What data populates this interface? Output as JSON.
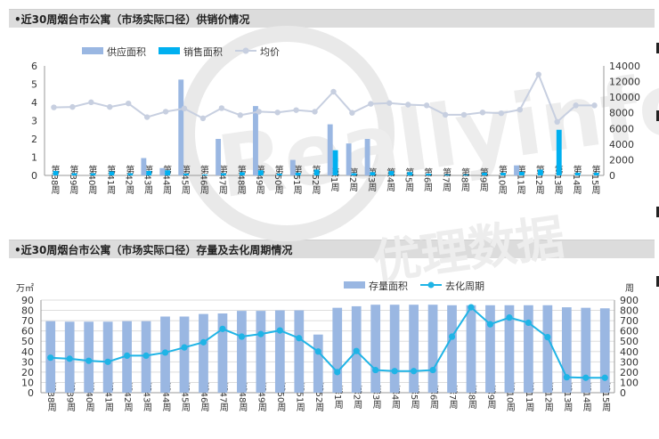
{
  "colors": {
    "supply": "#9ab7e2",
    "sales": "#00b0f0",
    "avg_line": "#c7cfe0",
    "stock": "#9ab7e2",
    "cycle": "#1fb4e6",
    "axis_text": "#333333",
    "grid": "#dddddd",
    "watermark": "#e2e2e2"
  },
  "watermark": {
    "main": "Reallyinfo",
    "sub": "优理数据"
  },
  "chart_data": [
    {
      "type": "bar",
      "title": "•近30周烟台市公寓（市场实际口径）供销价情况",
      "categories": [
        "第38周",
        "第39周",
        "第40周",
        "第41周",
        "第42周",
        "第43周",
        "第44周",
        "第45周",
        "第46周",
        "第47周",
        "第48周",
        "第49周",
        "第50周",
        "第51周",
        "第52周",
        "第1周",
        "第2周",
        "第3周",
        "第4周",
        "第5周",
        "第6周",
        "第7周",
        "第8周",
        "第9周",
        "第10周",
        "第11周",
        "第12周",
        "第13周",
        "第14周",
        "第15周"
      ],
      "series": [
        {
          "name": "供应面积",
          "kind": "bar",
          "axis": "left",
          "values": [
            0,
            0,
            0,
            0,
            0,
            0.95,
            0.4,
            5.25,
            0,
            2.0,
            0,
            3.8,
            0,
            0.85,
            0,
            2.8,
            1.75,
            2.0,
            0,
            0,
            0,
            0,
            0,
            0,
            0,
            0.55,
            0,
            0,
            0,
            0
          ]
        },
        {
          "name": "销售面积",
          "kind": "bar",
          "axis": "left",
          "values": [
            0.25,
            0.12,
            0.12,
            0.22,
            0.12,
            0.25,
            0.28,
            0.1,
            0.05,
            0.12,
            0.18,
            0.28,
            0.1,
            0.15,
            0.32,
            1.38,
            0.12,
            0.18,
            0.24,
            0.18,
            0.1,
            0.05,
            0.05,
            0.15,
            0.15,
            0.2,
            0.32,
            2.5,
            0.15,
            0.15
          ]
        },
        {
          "name": "均价",
          "kind": "line",
          "axis": "right",
          "values": [
            8700,
            8750,
            9350,
            8750,
            9200,
            7450,
            8150,
            8550,
            7300,
            8600,
            7700,
            8150,
            8050,
            8350,
            8150,
            10700,
            8000,
            9150,
            9250,
            9050,
            8950,
            7750,
            7750,
            8050,
            7950,
            8400,
            12900,
            6850,
            8950,
            8950
          ]
        }
      ],
      "yleft_lim": [
        0,
        6
      ],
      "yleft_ticks": [
        "0",
        "1",
        "2",
        "3",
        "4",
        "5",
        "6"
      ],
      "yright_lim": [
        0,
        14000
      ],
      "yright_ticks": [
        "0",
        "2000",
        "4000",
        "6000",
        "8000",
        "10000",
        "12000",
        "14000"
      ],
      "grid": false,
      "legend": "top-center"
    },
    {
      "type": "bar",
      "title": "•近30周烟台市公寓（市场实际口径）存量及去化周期情况",
      "yleft_unit": "万㎡",
      "yright_unit": "周",
      "categories": [
        "第38周",
        "第39周",
        "第40周",
        "第41周",
        "第42周",
        "第43周",
        "第44周",
        "第45周",
        "第46周",
        "第47周",
        "第48周",
        "第49周",
        "第50周",
        "第51周",
        "第52周",
        "第1周",
        "第2周",
        "第3周",
        "第4周",
        "第5周",
        "第6周",
        "第7周",
        "第8周",
        "第9周",
        "第10周",
        "第11周",
        "第12周",
        "第13周",
        "第14周",
        "第15周"
      ],
      "series": [
        {
          "name": "存量面积",
          "kind": "bar",
          "axis": "left",
          "values": [
            69.5,
            69,
            69,
            69,
            69.5,
            69.5,
            74,
            74,
            76.5,
            77,
            79.5,
            79.5,
            80,
            80,
            56.5,
            82.5,
            84,
            85.5,
            85.5,
            85.5,
            85.5,
            85,
            85,
            85,
            85,
            85,
            85,
            83,
            82.5,
            82
          ]
        },
        {
          "name": "去化周期",
          "kind": "line",
          "axis": "right",
          "values": [
            340,
            330,
            310,
            300,
            360,
            360,
            390,
            440,
            490,
            620,
            545,
            570,
            605,
            530,
            400,
            200,
            405,
            220,
            210,
            210,
            220,
            545,
            830,
            665,
            730,
            680,
            540,
            150,
            145,
            145
          ]
        }
      ],
      "yleft_lim": [
        0,
        90
      ],
      "yleft_ticks": [
        "0",
        "10",
        "20",
        "30",
        "40",
        "50",
        "60",
        "70",
        "80",
        "90"
      ],
      "yright_lim": [
        0,
        900
      ],
      "yright_ticks": [
        "0",
        "100",
        "200",
        "300",
        "400",
        "500",
        "600",
        "700",
        "800",
        "900"
      ],
      "grid": true,
      "legend": "top-right"
    }
  ]
}
